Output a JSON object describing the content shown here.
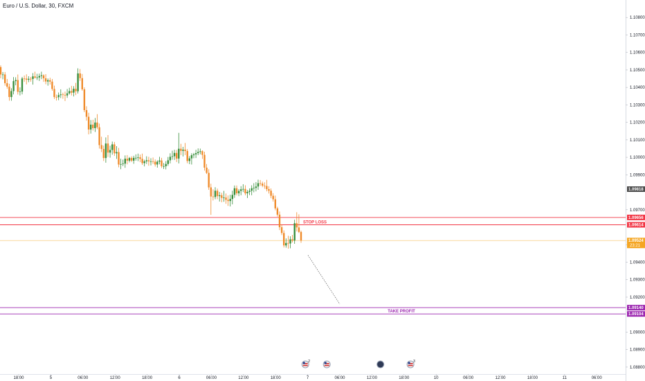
{
  "chart_data": {
    "type": "candlestick",
    "title": "Euro / U.S. Dollar, 30, FXCM",
    "colors": {
      "up": "#26a69a",
      "up_candle": "#388e3c",
      "down": "#ef8a2a",
      "stop": "#f23645",
      "target": "#9c27b0",
      "current": "#f5a623",
      "last_close_label": "#4a4a4a",
      "axis_text": "#131722",
      "grid": "#f0f3fa"
    },
    "y_axis": {
      "min": 1.0876,
      "max": 1.109,
      "ticks": [
        "1.10800",
        "1.10700",
        "1.10600",
        "1.10500",
        "1.10400",
        "1.10300",
        "1.10200",
        "1.10100",
        "1.10000",
        "1.09900",
        "1.09700",
        "1.09500",
        "1.09400",
        "1.09300",
        "1.09200",
        "1.09000",
        "1.08900",
        "1.08800"
      ]
    },
    "x_axis": {
      "ticks": [
        "18:00",
        "5",
        "06:00",
        "12:00",
        "18:00",
        "6",
        "06:00",
        "12:00",
        "18:00",
        "7",
        "06:00",
        "12:00",
        "18:00",
        "10",
        "06:00",
        "12:00",
        "18:00",
        "11",
        "06:00"
      ]
    },
    "price_labels": {
      "last_close": "1.09818",
      "stop_upper": "1.09656",
      "stop_lower": "1.09614",
      "current": "1.09524",
      "countdown": "23:21",
      "target_upper": "1.09140",
      "target_lower": "1.09104"
    },
    "levels": {
      "stop_upper": 1.09656,
      "stop_lower": 1.09614,
      "current": 1.09524,
      "target_upper": 1.0914,
      "target_lower": 1.09104,
      "last_close": 1.09818
    },
    "annotations": {
      "stop_loss": "STOP LOSS",
      "take_profit": "TAKE PROFIT"
    },
    "events": [
      {
        "label": "2",
        "flag": "us",
        "after_candle": 142
      },
      {
        "label": "",
        "flag": "us",
        "after_candle": 152
      },
      {
        "label": "",
        "flag": "dark",
        "after_candle": 177
      },
      {
        "label": "3",
        "flag": "us",
        "after_candle": 191
      }
    ],
    "candles": [
      [
        1.10516,
        1.10526,
        1.10452,
        1.10474
      ],
      [
        1.10474,
        1.10488,
        1.10446,
        1.10474
      ],
      [
        1.10474,
        1.10488,
        1.1041,
        1.10424
      ],
      [
        1.10424,
        1.10448,
        1.10392,
        1.10404
      ],
      [
        1.10404,
        1.10421,
        1.10324,
        1.10345
      ],
      [
        1.10345,
        1.10395,
        1.10324,
        1.10379
      ],
      [
        1.10379,
        1.10459,
        1.1036,
        1.10436
      ],
      [
        1.10436,
        1.10458,
        1.10412,
        1.10442
      ],
      [
        1.10442,
        1.10474,
        1.10359,
        1.10375
      ],
      [
        1.10375,
        1.104,
        1.10354,
        1.10376
      ],
      [
        1.10376,
        1.1046,
        1.1036,
        1.10451
      ],
      [
        1.10451,
        1.10468,
        1.10432,
        1.1045
      ],
      [
        1.1045,
        1.10475,
        1.10417,
        1.10444
      ],
      [
        1.10444,
        1.10464,
        1.1043,
        1.10449
      ],
      [
        1.10449,
        1.1046,
        1.10433,
        1.10448
      ],
      [
        1.10448,
        1.10482,
        1.10416,
        1.10463
      ],
      [
        1.10463,
        1.1049,
        1.10451,
        1.10455
      ],
      [
        1.10455,
        1.10478,
        1.10442,
        1.10457
      ],
      [
        1.10457,
        1.10479,
        1.10437,
        1.10465
      ],
      [
        1.10465,
        1.1049,
        1.10447,
        1.10469
      ],
      [
        1.10469,
        1.10475,
        1.10432,
        1.10452
      ],
      [
        1.10452,
        1.10476,
        1.10418,
        1.10434
      ],
      [
        1.10434,
        1.10451,
        1.1041,
        1.10441
      ],
      [
        1.10441,
        1.10455,
        1.10416,
        1.10433
      ],
      [
        1.10433,
        1.10448,
        1.10381,
        1.10391
      ],
      [
        1.10391,
        1.1041,
        1.10334,
        1.10345
      ],
      [
        1.10345,
        1.10359,
        1.10325,
        1.10344
      ],
      [
        1.10344,
        1.10371,
        1.10327,
        1.10356
      ],
      [
        1.10356,
        1.10389,
        1.10339,
        1.1036
      ],
      [
        1.1036,
        1.1037,
        1.10335,
        1.10357
      ],
      [
        1.10357,
        1.10376,
        1.10322,
        1.10354
      ],
      [
        1.10354,
        1.10391,
        1.1034,
        1.10366
      ],
      [
        1.10366,
        1.10398,
        1.10359,
        1.10379
      ],
      [
        1.10379,
        1.10409,
        1.10354,
        1.1037
      ],
      [
        1.1037,
        1.10407,
        1.10348,
        1.10392
      ],
      [
        1.10392,
        1.10426,
        1.10356,
        1.10378
      ],
      [
        1.10378,
        1.10509,
        1.10365,
        1.1048
      ],
      [
        1.1048,
        1.10505,
        1.10437,
        1.10453
      ],
      [
        1.10453,
        1.10477,
        1.10381,
        1.10389
      ],
      [
        1.10389,
        1.104,
        1.10258,
        1.1027
      ],
      [
        1.1027,
        1.10292,
        1.1021,
        1.10232
      ],
      [
        1.10232,
        1.10255,
        1.10131,
        1.10159
      ],
      [
        1.10159,
        1.10213,
        1.10136,
        1.10187
      ],
      [
        1.10187,
        1.10215,
        1.10153,
        1.10167
      ],
      [
        1.10167,
        1.10225,
        1.10145,
        1.10199
      ],
      [
        1.10199,
        1.10247,
        1.10161,
        1.10172
      ],
      [
        1.10172,
        1.10193,
        1.1005,
        1.1007
      ],
      [
        1.1007,
        1.10118,
        1.1003,
        1.10048
      ],
      [
        1.10048,
        1.10067,
        1.09979,
        1.09996
      ],
      [
        1.09996,
        1.10114,
        1.09969,
        1.10079
      ],
      [
        1.10079,
        1.10127,
        1.10002,
        1.10027
      ],
      [
        1.10027,
        1.10067,
        1.09998,
        1.10042
      ],
      [
        1.10042,
        1.1009,
        1.10015,
        1.10074
      ],
      [
        1.10074,
        1.10088,
        1.10008,
        1.10023
      ],
      [
        1.10023,
        1.10064,
        1.09991,
        1.1003
      ],
      [
        1.1003,
        1.10054,
        1.09943,
        1.09959
      ],
      [
        1.09959,
        1.09992,
        1.09932,
        1.09961
      ],
      [
        1.09961,
        1.09987,
        1.0995,
        1.09964
      ],
      [
        1.09964,
        1.10011,
        1.0994,
        1.09992
      ],
      [
        1.09992,
        1.10013,
        1.0996,
        1.09981
      ],
      [
        1.09981,
        1.10002,
        1.09971,
        1.09996
      ],
      [
        1.09996,
        1.10006,
        1.09973,
        1.09981
      ],
      [
        1.09981,
        1.10009,
        1.09963,
        1.09997
      ],
      [
        1.09997,
        1.10017,
        1.09981,
        1.09997
      ],
      [
        1.09997,
        1.10021,
        1.09978,
        1.1
      ],
      [
        1.1,
        1.10016,
        1.09972,
        1.09991
      ],
      [
        1.09991,
        1.10021,
        1.09957,
        1.09967
      ],
      [
        1.09967,
        1.09986,
        1.09948,
        1.09977
      ],
      [
        1.09977,
        1.10006,
        1.09962,
        1.09983
      ],
      [
        1.09983,
        1.10003,
        1.09952,
        1.09977
      ],
      [
        1.09977,
        1.09995,
        1.09954,
        1.09977
      ],
      [
        1.09977,
        1.09999,
        1.09962,
        1.09975
      ],
      [
        1.09975,
        1.09988,
        1.09947,
        1.09959
      ],
      [
        1.09959,
        1.09983,
        1.09941,
        1.09975
      ],
      [
        1.09975,
        1.10003,
        1.0996,
        1.09982
      ],
      [
        1.09982,
        1.09997,
        1.09939,
        1.09949
      ],
      [
        1.09949,
        1.09967,
        1.09933,
        1.09949
      ],
      [
        1.09949,
        1.09978,
        1.09931,
        1.09962
      ],
      [
        1.09962,
        1.10002,
        1.09951,
        1.09983
      ],
      [
        1.09983,
        1.10023,
        1.09965,
        1.10003
      ],
      [
        1.10003,
        1.10038,
        1.09986,
        1.10006
      ],
      [
        1.10006,
        1.10043,
        1.09985,
        1.10025
      ],
      [
        1.10025,
        1.10042,
        1.09973,
        1.09993
      ],
      [
        1.09993,
        1.1014,
        1.09965,
        1.10049
      ],
      [
        1.10049,
        1.10077,
        1.10013,
        1.10037
      ],
      [
        1.10037,
        1.1006,
        1.10005,
        1.10044
      ],
      [
        1.10044,
        1.10082,
        1.10013,
        1.10036
      ],
      [
        1.10036,
        1.10047,
        1.09966,
        1.09979
      ],
      [
        1.09979,
        1.10007,
        1.09961,
        1.09994
      ],
      [
        1.09994,
        1.10023,
        1.09959,
        1.10012
      ],
      [
        1.10012,
        1.10025,
        1.09995,
        1.10017
      ],
      [
        1.10017,
        1.10043,
        1.09996,
        1.10024
      ],
      [
        1.10024,
        1.10051,
        1.10012,
        1.10031
      ],
      [
        1.10031,
        1.1005,
        1.10017,
        1.10035
      ],
      [
        1.10035,
        1.1004,
        1.09991,
        1.10014
      ],
      [
        1.10014,
        1.10032,
        1.09924,
        1.09941
      ],
      [
        1.09941,
        1.09962,
        1.09905,
        1.09911
      ],
      [
        1.09911,
        1.09932,
        1.09814,
        1.09828
      ],
      [
        1.09828,
        1.09849,
        1.09671,
        1.09776
      ],
      [
        1.09776,
        1.09817,
        1.09753,
        1.09773
      ],
      [
        1.09773,
        1.09829,
        1.0976,
        1.09809
      ],
      [
        1.09809,
        1.09821,
        1.0976,
        1.09778
      ],
      [
        1.09778,
        1.09802,
        1.09747,
        1.09783
      ],
      [
        1.09783,
        1.09797,
        1.09743,
        1.09768
      ],
      [
        1.09768,
        1.09808,
        1.09746,
        1.0977
      ],
      [
        1.0977,
        1.09793,
        1.09734,
        1.09757
      ],
      [
        1.09757,
        1.09782,
        1.09722,
        1.0975
      ],
      [
        1.0975,
        1.09786,
        1.09719,
        1.09762
      ],
      [
        1.09762,
        1.09809,
        1.09731,
        1.09785
      ],
      [
        1.09785,
        1.09839,
        1.09768,
        1.09823
      ],
      [
        1.09823,
        1.09839,
        1.09782,
        1.09794
      ],
      [
        1.09794,
        1.09818,
        1.09778,
        1.09808
      ],
      [
        1.09808,
        1.09835,
        1.09783,
        1.09817
      ],
      [
        1.09817,
        1.09846,
        1.09801,
        1.09819
      ],
      [
        1.09819,
        1.0984,
        1.09783,
        1.09794
      ],
      [
        1.09794,
        1.09813,
        1.09767,
        1.09802
      ],
      [
        1.09802,
        1.09822,
        1.09784,
        1.09809
      ],
      [
        1.09809,
        1.0984,
        1.09783,
        1.09823
      ],
      [
        1.09823,
        1.09852,
        1.098,
        1.09825
      ],
      [
        1.09825,
        1.09858,
        1.09805,
        1.09833
      ],
      [
        1.09833,
        1.09872,
        1.09814,
        1.09852
      ],
      [
        1.09852,
        1.0987,
        1.09837,
        1.0985
      ],
      [
        1.0985,
        1.09861,
        1.09829,
        1.09838
      ],
      [
        1.09838,
        1.09857,
        1.0982,
        1.09836
      ],
      [
        1.09836,
        1.09871,
        1.09805,
        1.09818
      ],
      [
        1.09818,
        1.09835,
        1.09793,
        1.09809
      ],
      [
        1.09809,
        1.09822,
        1.09766,
        1.0978
      ],
      [
        1.0978,
        1.09795,
        1.09747,
        1.0976
      ],
      [
        1.0976,
        1.09781,
        1.09697,
        1.09708
      ],
      [
        1.09708,
        1.09717,
        1.09661,
        1.09672
      ],
      [
        1.09672,
        1.0969,
        1.09584,
        1.096
      ],
      [
        1.096,
        1.09617,
        1.09555,
        1.09567
      ],
      [
        1.09567,
        1.09582,
        1.09484,
        1.09496
      ],
      [
        1.09496,
        1.09536,
        1.09483,
        1.0951
      ],
      [
        1.0951,
        1.09551,
        1.09478,
        1.09507
      ],
      [
        1.09507,
        1.09548,
        1.0948,
        1.09531
      ],
      [
        1.09531,
        1.09556,
        1.09513,
        1.09524
      ],
      [
        1.09524,
        1.09643,
        1.09505,
        1.09623
      ],
      [
        1.09623,
        1.09686,
        1.09576,
        1.09599
      ],
      [
        1.09599,
        1.09674,
        1.09567,
        1.09573
      ],
      [
        1.09573,
        1.09581,
        1.09511,
        1.09524
      ]
    ]
  }
}
